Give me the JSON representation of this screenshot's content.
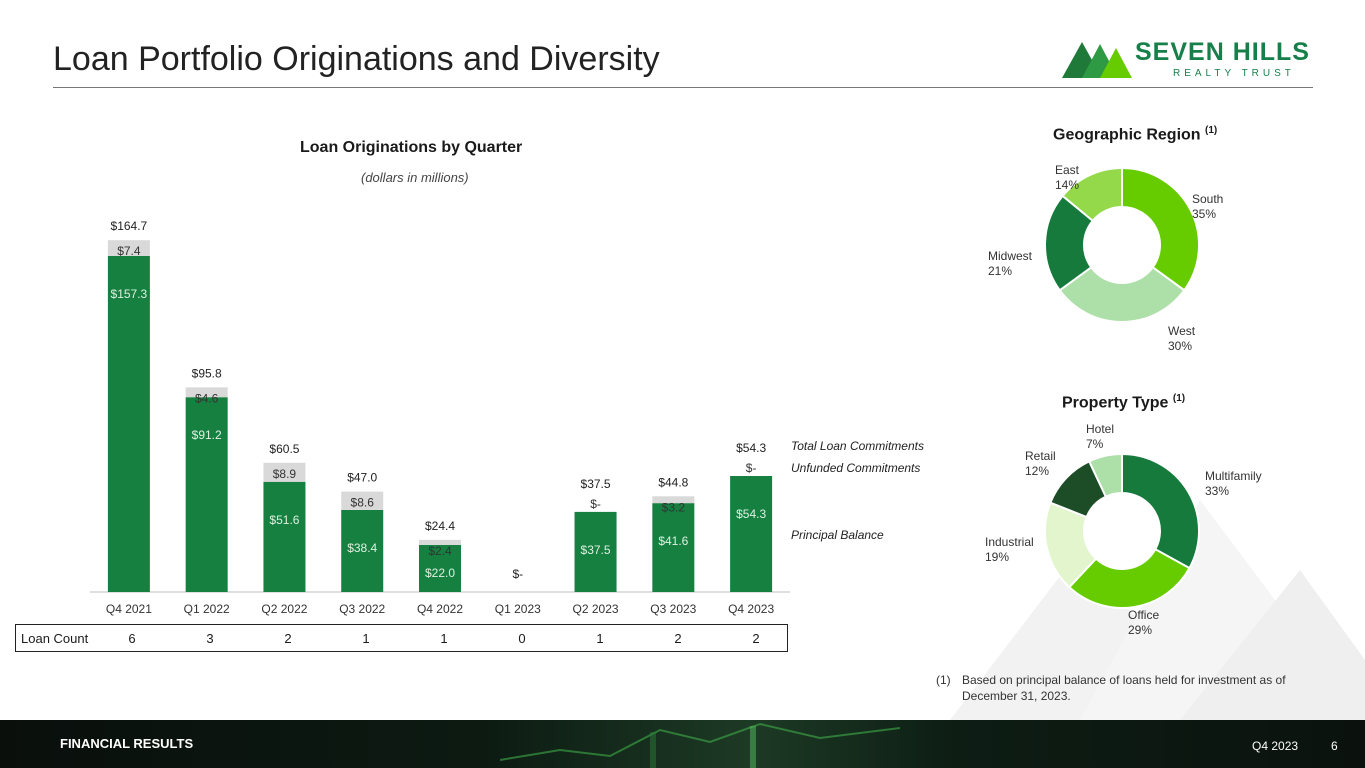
{
  "header": {
    "title": "Loan Portfolio Originations and Diversity"
  },
  "logo": {
    "name": "SEVEN HILLS",
    "sub": "REALTY TRUST"
  },
  "colors": {
    "principal": "#15803f",
    "unfunded": "#d9d9d9",
    "brand_green": "#17804a"
  },
  "chart_data": [
    {
      "type": "bar",
      "title": "Loan Originations by Quarter",
      "subtitle": "(dollars in millions)",
      "stacked": true,
      "categories": [
        "Q4 2021",
        "Q1 2022",
        "Q2 2022",
        "Q3 2022",
        "Q4 2022",
        "Q1 2023",
        "Q2 2023",
        "Q3 2023",
        "Q4 2023"
      ],
      "series": [
        {
          "name": "Principal Balance",
          "values": [
            157.3,
            91.2,
            51.6,
            38.4,
            22.0,
            0,
            37.5,
            41.6,
            54.3
          ],
          "labels": [
            "$157.3",
            "$91.2",
            "$51.6",
            "$38.4",
            "$22.0",
            "",
            "$37.5",
            "$41.6",
            "$54.3"
          ]
        },
        {
          "name": "Unfunded Commitments",
          "values": [
            7.4,
            4.6,
            8.9,
            8.6,
            2.4,
            0,
            0,
            3.2,
            0
          ],
          "labels": [
            "$7.4",
            "$4.6",
            "$8.9",
            "$8.6",
            "$2.4",
            "",
            "$-",
            "$3.2",
            "$-"
          ]
        }
      ],
      "totals": [
        164.7,
        95.8,
        60.5,
        47.0,
        24.4,
        0,
        37.5,
        44.8,
        54.3
      ],
      "total_labels": [
        "$164.7",
        "$95.8",
        "$60.5",
        "$47.0",
        "$24.4",
        "$-",
        "$37.5",
        "$44.8",
        "$54.3"
      ],
      "ylim": [
        0,
        170
      ],
      "legend": [
        "Total Loan Commitments",
        "Unfunded Commitments",
        "Principal Balance"
      ],
      "loan_count_label": "Loan Count",
      "loan_counts": [
        "6",
        "3",
        "2",
        "1",
        "1",
        "0",
        "1",
        "2",
        "2"
      ]
    },
    {
      "type": "pie",
      "title": "Geographic Region",
      "footnote_ref": "(1)",
      "slices": [
        {
          "name": "South",
          "value": 35,
          "label": "35%",
          "color": "#66cc00"
        },
        {
          "name": "West",
          "value": 30,
          "label": "30%",
          "color": "#addfa8"
        },
        {
          "name": "Midwest",
          "value": 21,
          "label": "21%",
          "color": "#157a3c"
        },
        {
          "name": "East",
          "value": 14,
          "label": "14%",
          "color": "#93d94a"
        }
      ]
    },
    {
      "type": "pie",
      "title": "Property Type",
      "footnote_ref": "(1)",
      "slices": [
        {
          "name": "Multifamily",
          "value": 33,
          "label": "33%",
          "color": "#157a3c"
        },
        {
          "name": "Office",
          "value": 29,
          "label": "29%",
          "color": "#66cc00"
        },
        {
          "name": "Industrial",
          "value": 19,
          "label": "19%",
          "color": "#e2f5cd"
        },
        {
          "name": "Retail",
          "value": 12,
          "label": "12%",
          "color": "#1d4d26"
        },
        {
          "name": "Hotel",
          "value": 7,
          "label": "7%",
          "color": "#addfa8"
        }
      ]
    }
  ],
  "footnote": {
    "num": "(1)",
    "text": "Based on principal balance of loans held for investment as of December 31, 2023."
  },
  "footer": {
    "section": "FINANCIAL RESULTS",
    "period": "Q4 2023",
    "page": "6"
  }
}
